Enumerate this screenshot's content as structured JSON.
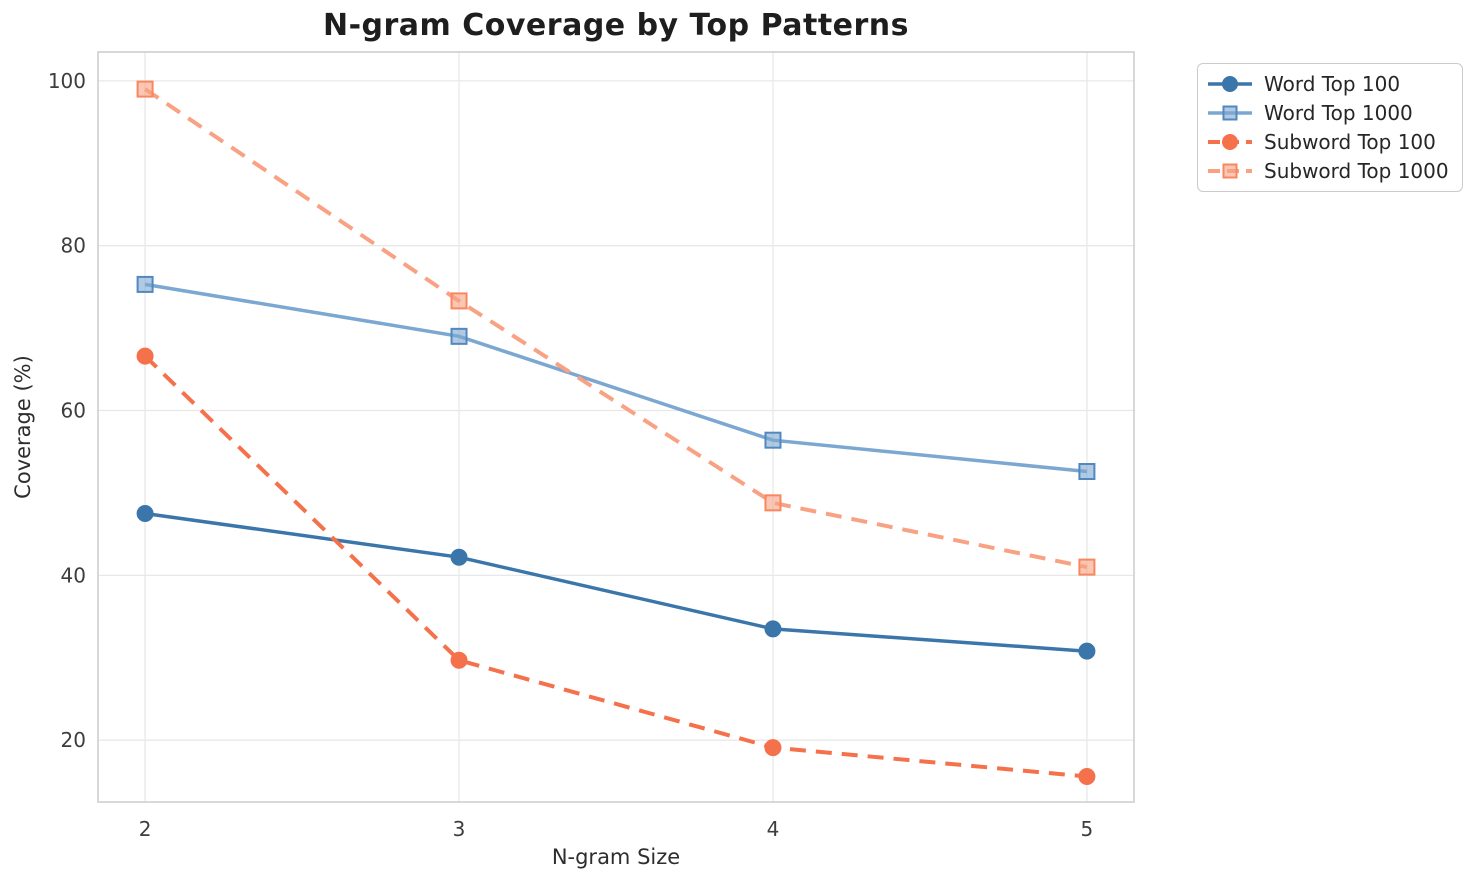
{
  "title": "N-gram Coverage by Top Patterns",
  "chart_data": {
    "type": "line",
    "title": "N-gram Coverage by Top Patterns",
    "xlabel": "N-gram Size",
    "ylabel": "Coverage (%)",
    "x": [
      2,
      3,
      4,
      5
    ],
    "xticks": [
      2,
      3,
      4,
      5
    ],
    "yticks": [
      20,
      40,
      60,
      80,
      100
    ],
    "xlim": [
      1.85,
      5.15
    ],
    "ylim": [
      12.5,
      103.5
    ],
    "grid": true,
    "legend_position": "outside upper right",
    "background_color": "#ffffff",
    "grid_color": "#e8e8e8",
    "spine_color": "#cccccc",
    "series": [
      {
        "name": "Word Top 100",
        "values": [
          47.5,
          42.2,
          33.5,
          30.8
        ],
        "color": "#3b76ab",
        "marker": "circle",
        "marker_edge": "#3b76ab",
        "line_style": "solid"
      },
      {
        "name": "Word Top 1000",
        "values": [
          75.3,
          69.0,
          56.4,
          52.6
        ],
        "color": "#7ba7d1",
        "marker": "square",
        "marker_edge": "#5288bf",
        "line_style": "solid"
      },
      {
        "name": "Subword Top 100",
        "values": [
          66.6,
          29.7,
          19.1,
          15.6
        ],
        "color": "#f5714b",
        "marker": "circle",
        "marker_edge": "#f5714b",
        "line_style": "dashed"
      },
      {
        "name": "Subword Top 1000",
        "values": [
          99.0,
          73.3,
          48.8,
          41.0
        ],
        "color": "#f9a183",
        "marker": "square",
        "marker_edge": "#f8875f",
        "line_style": "dashed"
      }
    ]
  }
}
